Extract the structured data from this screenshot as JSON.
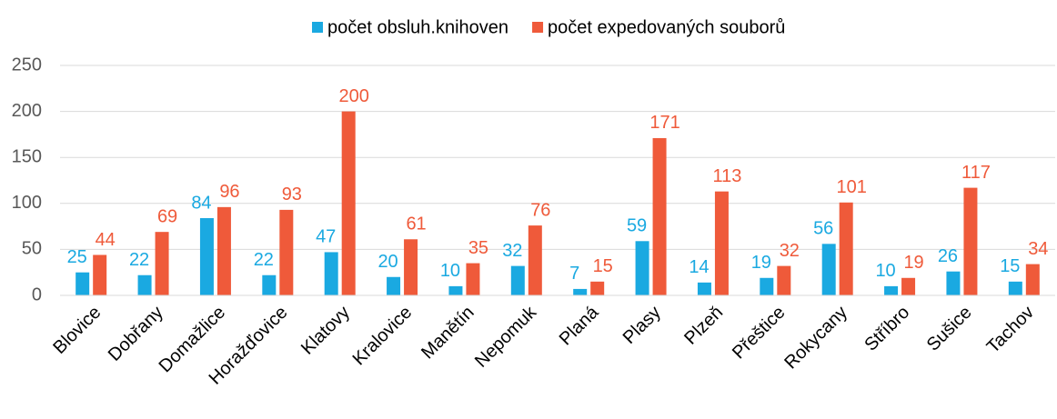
{
  "chart_data": {
    "type": "bar",
    "categories": [
      "Blovice",
      "Dobřany",
      "Domažlice",
      "Horažďovice",
      "Klatovy",
      "Kralovice",
      "Manětín",
      "Nepomuk",
      "Planá",
      "Plasy",
      "Plzeň",
      "Přeštice",
      "Rokycany",
      "Stříbro",
      "Sušice",
      "Tachov"
    ],
    "series": [
      {
        "name": "počet obsluh.knihoven",
        "color": "#1aa9e1",
        "values": [
          25,
          22,
          84,
          22,
          47,
          20,
          10,
          32,
          7,
          59,
          14,
          19,
          56,
          10,
          26,
          15
        ]
      },
      {
        "name": "počet expedovaných souborů",
        "color": "#ef5a3a",
        "values": [
          44,
          69,
          96,
          93,
          200,
          61,
          35,
          76,
          15,
          171,
          113,
          32,
          101,
          19,
          117,
          34
        ]
      }
    ],
    "ylim": [
      0,
      250
    ],
    "yticks": [
      0,
      50,
      100,
      150,
      200,
      250
    ],
    "grid": true,
    "legend": "top"
  }
}
